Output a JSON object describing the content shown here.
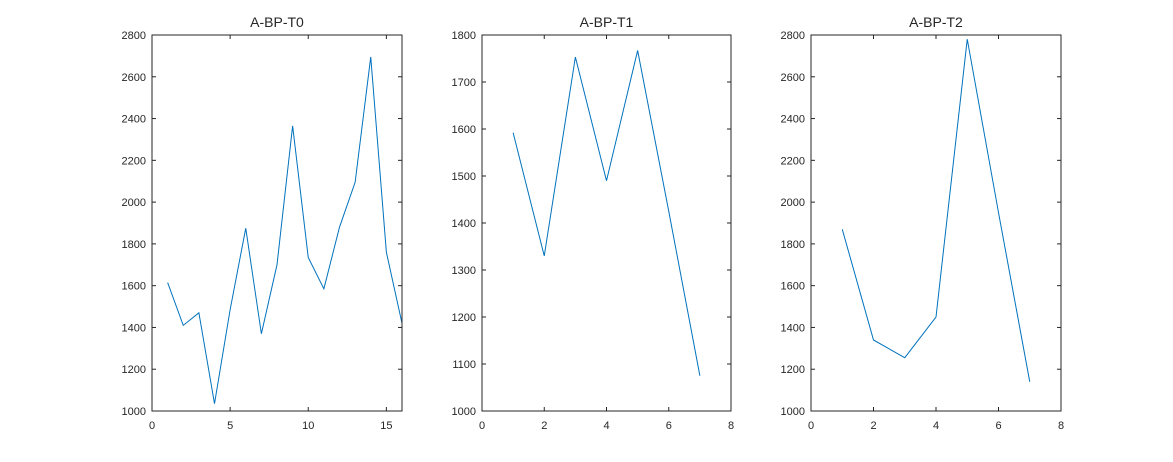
{
  "chart_data": [
    {
      "type": "line",
      "title": "A-BP-T0",
      "xlim": [
        0,
        16
      ],
      "ylim": [
        1000,
        2800
      ],
      "xticks": [
        0,
        5,
        10,
        15
      ],
      "yticks": [
        1000,
        1200,
        1400,
        1600,
        1800,
        2000,
        2200,
        2400,
        2600,
        2800
      ],
      "color": "#0072bd",
      "x": [
        1,
        2,
        3,
        4,
        5,
        6,
        7,
        8,
        9,
        10,
        11,
        12,
        13,
        14,
        15,
        16
      ],
      "y": [
        1615,
        1410,
        1470,
        1035,
        1485,
        1875,
        1370,
        1700,
        2365,
        1735,
        1585,
        1880,
        2095,
        2695,
        1760,
        1420
      ]
    },
    {
      "type": "line",
      "title": "A-BP-T1",
      "xlim": [
        0,
        8
      ],
      "ylim": [
        1000,
        1800
      ],
      "xticks": [
        0,
        2,
        4,
        6,
        8
      ],
      "yticks": [
        1000,
        1100,
        1200,
        1300,
        1400,
        1500,
        1600,
        1700,
        1800
      ],
      "color": "#0072bd",
      "x": [
        1,
        2,
        3,
        4,
        5,
        6,
        7
      ],
      "y": [
        1592,
        1330,
        1753,
        1490,
        1767,
        1425,
        1075
      ]
    },
    {
      "type": "line",
      "title": "A-BP-T2",
      "xlim": [
        0,
        8
      ],
      "ylim": [
        1000,
        2800
      ],
      "xticks": [
        0,
        2,
        4,
        6,
        8
      ],
      "yticks": [
        1000,
        1200,
        1400,
        1600,
        1800,
        2000,
        2200,
        2400,
        2600,
        2800
      ],
      "color": "#0072bd",
      "x": [
        1,
        2,
        3,
        4,
        5,
        6,
        7
      ],
      "y": [
        1870,
        1340,
        1255,
        1450,
        2780,
        1950,
        1140
      ]
    }
  ]
}
